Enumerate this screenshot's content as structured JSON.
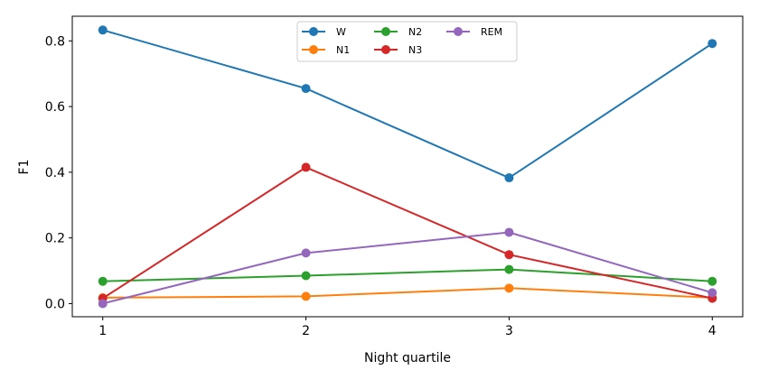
{
  "chart_data": {
    "type": "line",
    "title": "",
    "xlabel": "Night quartile",
    "ylabel": "F1",
    "x": [
      1,
      2,
      3,
      4
    ],
    "x_tick_labels": [
      "1",
      "2",
      "3",
      "4"
    ],
    "y_ticks": [
      0.0,
      0.2,
      0.4,
      0.6,
      0.8
    ],
    "y_tick_labels": [
      "0.0",
      "0.2",
      "0.4",
      "0.6",
      "0.8"
    ],
    "xlim": [
      0.85,
      4.15
    ],
    "ylim": [
      -0.04,
      0.875
    ],
    "grid": false,
    "legend_placement": "top-center",
    "series": [
      {
        "name": "W",
        "color": "#1f77b4",
        "values": [
          0.833,
          0.655,
          0.383,
          0.792
        ]
      },
      {
        "name": "N1",
        "color": "#ff7f0e",
        "values": [
          0.018,
          0.022,
          0.047,
          0.018
        ]
      },
      {
        "name": "N2",
        "color": "#2ca02c",
        "values": [
          0.068,
          0.085,
          0.104,
          0.068
        ]
      },
      {
        "name": "N3",
        "color": "#d62728",
        "values": [
          0.016,
          0.415,
          0.149,
          0.016
        ]
      },
      {
        "name": "REM",
        "color": "#9467bd",
        "values": [
          0.0,
          0.154,
          0.217,
          0.033
        ]
      }
    ]
  }
}
